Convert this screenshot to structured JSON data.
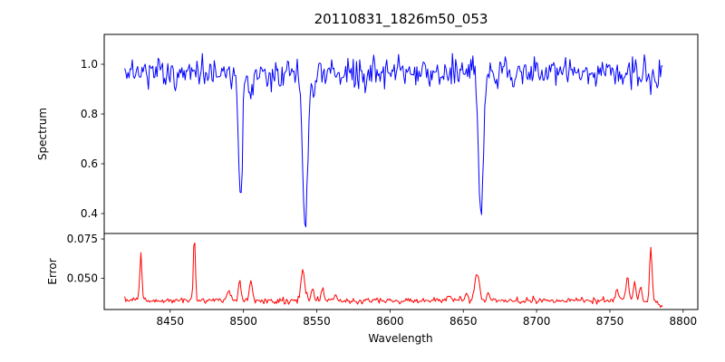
{
  "title": "20110831_1826m50_053",
  "axes": {
    "xlabel": "Wavelength",
    "x_range": [
      8405,
      8810
    ],
    "x_ticks": [
      8450,
      8500,
      8550,
      8600,
      8650,
      8700,
      8750,
      8800
    ],
    "spectrum": {
      "ylabel": "Spectrum",
      "y_range": [
        0.32,
        1.12
      ],
      "y_ticks": [
        {
          "value": 1.0,
          "label": "1.0"
        },
        {
          "value": 0.8,
          "label": "0.8"
        },
        {
          "value": 0.6,
          "label": "0.6"
        },
        {
          "value": 0.4,
          "label": "0.4"
        }
      ]
    },
    "error": {
      "ylabel": "Error",
      "y_range": [
        0.03,
        0.0785
      ],
      "y_ticks": [
        {
          "value": 0.075,
          "label": "0.075"
        },
        {
          "value": 0.05,
          "label": "0.050"
        }
      ]
    }
  },
  "chart_data": {
    "type": "line",
    "title": "20110831_1826m50_053",
    "xlabel": "Wavelength",
    "x_data_range": [
      8419,
      8786
    ],
    "grid": false,
    "legend": false,
    "panels": [
      {
        "name": "spectrum",
        "color": "#0000ff",
        "baseline": 0.965,
        "noise_sigma": 0.027,
        "absorption_lines_note": "normalized stellar spectrum, Ca II triplet region; minima read off plot",
        "absorption_lines": [
          {
            "center": 8498.0,
            "min_value": 0.47,
            "depth": 0.5,
            "width": 1.3
          },
          {
            "center": 8505.0,
            "min_value": 0.87,
            "depth": 0.1,
            "width": 1.0
          },
          {
            "center": 8542.1,
            "min_value": 0.34,
            "depth": 0.63,
            "width": 1.7
          },
          {
            "center": 8548.0,
            "min_value": 0.87,
            "depth": 0.1,
            "width": 1.0
          },
          {
            "center": 8662.1,
            "min_value": 0.35,
            "depth": 0.62,
            "width": 1.5
          }
        ]
      },
      {
        "name": "error",
        "color": "#ff0000",
        "baseline": 0.0355,
        "noise_sigma": 0.0009,
        "peaks_format": "[center, height_above_baseline, width]",
        "peaks": [
          [
            8430.0,
            0.029,
            0.7
          ],
          [
            8466.5,
            0.0405,
            0.7
          ],
          [
            8490.0,
            0.006,
            1.5
          ],
          [
            8497.5,
            0.0135,
            0.9
          ],
          [
            8505.0,
            0.0145,
            0.9
          ],
          [
            8540.5,
            0.02,
            1.3
          ],
          [
            8547.0,
            0.009,
            0.9
          ],
          [
            8554.0,
            0.0075,
            0.8
          ],
          [
            8563.0,
            0.004,
            0.8
          ],
          [
            8640.0,
            0.003,
            1.5
          ],
          [
            8652.0,
            0.004,
            1.0
          ],
          [
            8659.5,
            0.0165,
            1.6
          ],
          [
            8667.0,
            0.005,
            0.9
          ],
          [
            8755.0,
            0.006,
            1.2
          ],
          [
            8762.0,
            0.0145,
            1.0
          ],
          [
            8767.0,
            0.012,
            0.9
          ],
          [
            8771.0,
            0.009,
            0.8
          ],
          [
            8778.0,
            0.0345,
            0.8
          ]
        ]
      }
    ]
  }
}
